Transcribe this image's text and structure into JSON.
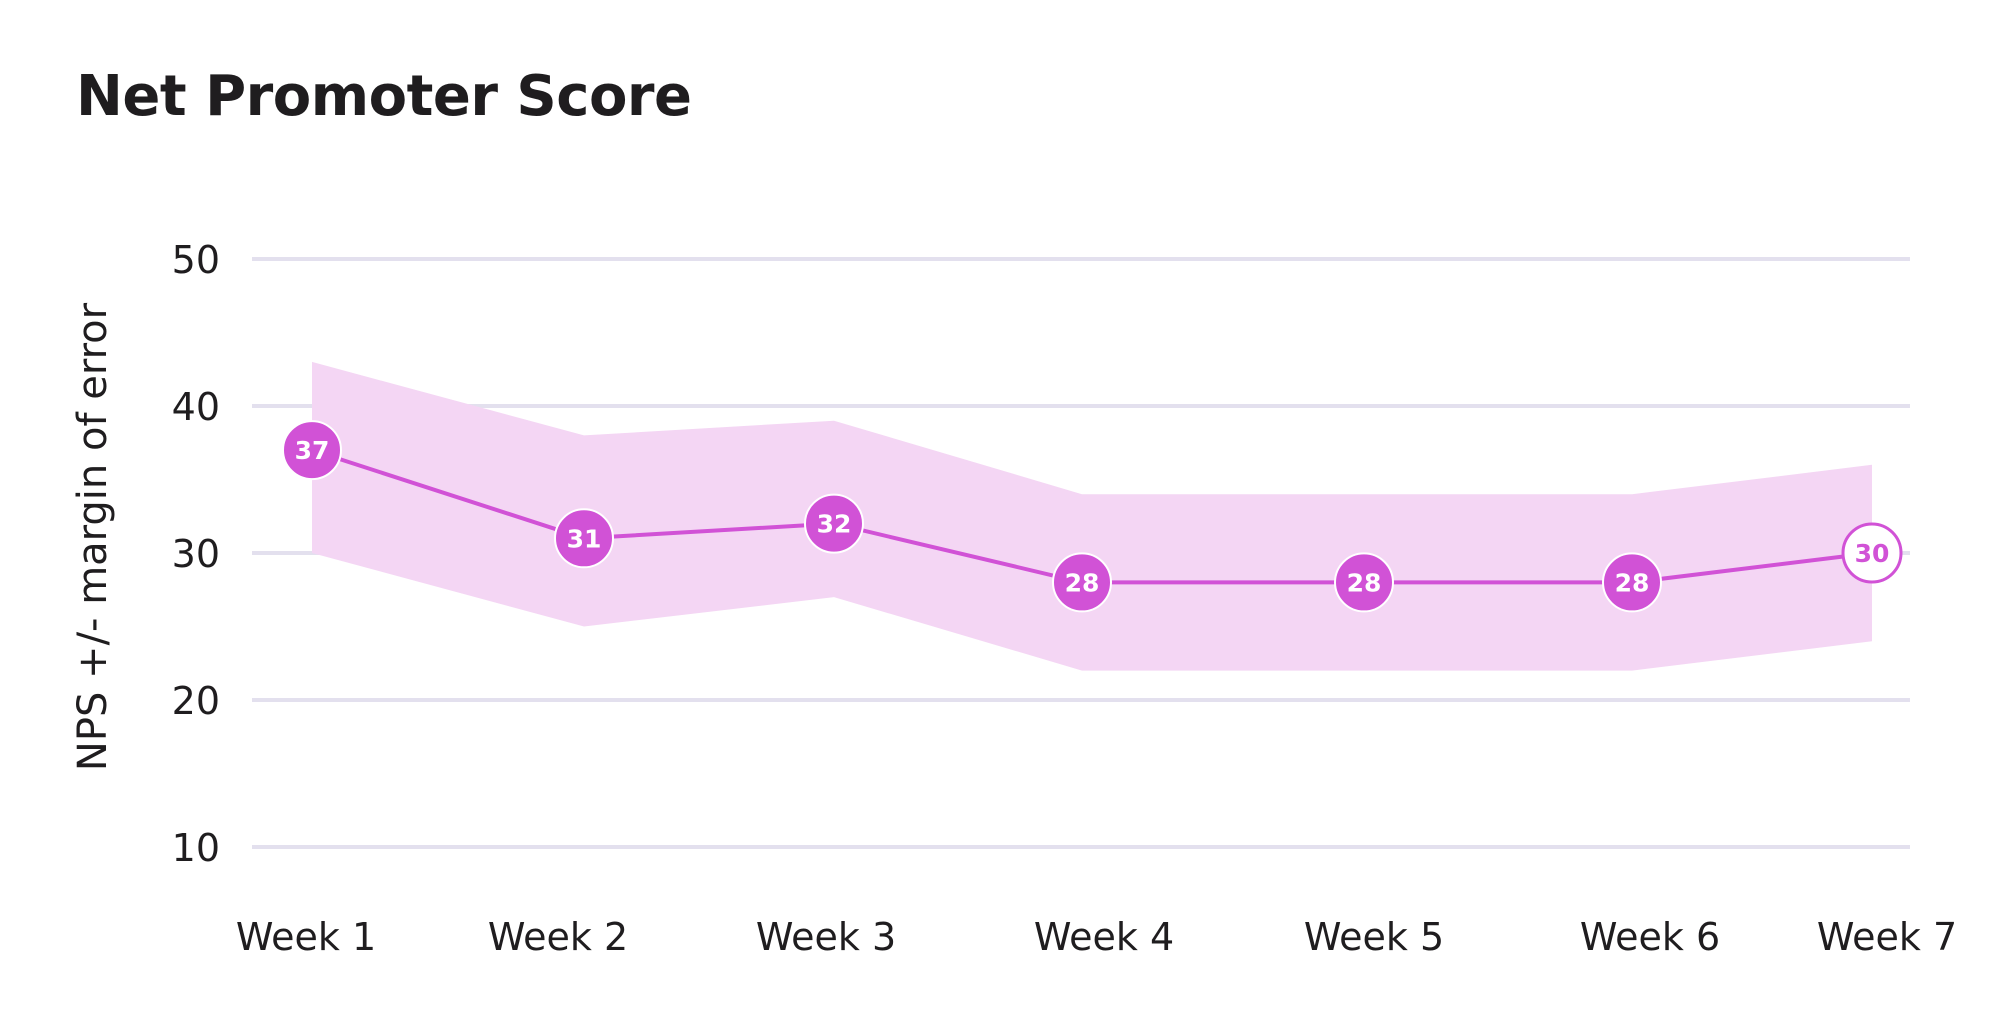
{
  "chart_data": {
    "type": "line",
    "title": "Net Promoter Score",
    "xlabel": "",
    "ylabel": "NPS +/- margin of error",
    "categories": [
      "Week 1",
      "Week 2",
      "Week 3",
      "Week 4",
      "Week 5",
      "Week 6",
      "Week 7"
    ],
    "y_ticks": [
      "50",
      "40",
      "30",
      "20",
      "10"
    ],
    "ylim": [
      10,
      50
    ],
    "grid": true,
    "series": [
      {
        "values": [
          37,
          31,
          32,
          28,
          28,
          28,
          30
        ],
        "upper": [
          43,
          38,
          39,
          34,
          34,
          34,
          36
        ],
        "lower": [
          30,
          25,
          27,
          22,
          22,
          22,
          24
        ]
      }
    ],
    "last_point_style": "hollow",
    "colors": {
      "line": "#d152d6",
      "band": "#f4d6f4",
      "grid": "#e3e0ee",
      "text": "#1f1d1f"
    }
  }
}
